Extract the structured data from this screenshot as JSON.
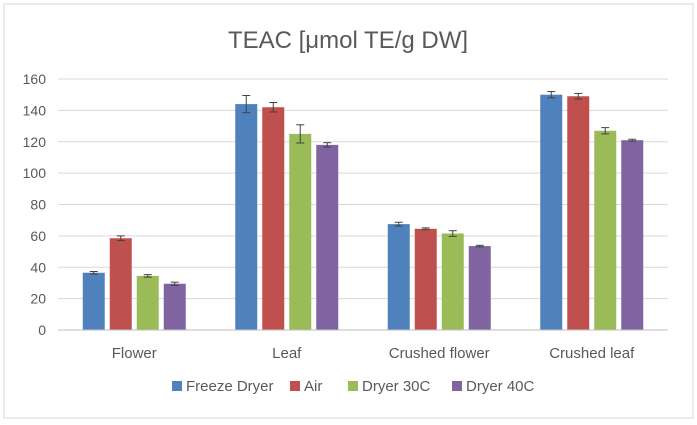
{
  "chart_data": {
    "type": "bar",
    "title": "TEAC [μmol TE/g DW]",
    "xlabel": "",
    "ylabel": "",
    "ylim": [
      0,
      160
    ],
    "yticks": [
      0,
      20,
      40,
      60,
      80,
      100,
      120,
      140,
      160
    ],
    "grid": true,
    "legend_position": "bottom",
    "categories": [
      "Flower",
      "Leaf",
      "Crushed flower",
      "Crushed leaf"
    ],
    "series": [
      {
        "name": "Freeze Dryer",
        "color": "#4F81BD",
        "values": [
          36.5,
          144,
          67.5,
          150
        ],
        "errors": [
          0.8,
          5.5,
          1.2,
          2.0
        ]
      },
      {
        "name": "Air",
        "color": "#C0504D",
        "values": [
          58.5,
          142,
          64.5,
          149
        ],
        "errors": [
          1.5,
          3.0,
          0.6,
          1.8
        ]
      },
      {
        "name": "Dryer 30C",
        "color": "#9BBB59",
        "values": [
          34.5,
          125,
          61.5,
          127
        ],
        "errors": [
          0.8,
          5.8,
          1.8,
          2.0
        ]
      },
      {
        "name": "Dryer 40C",
        "color": "#8064A2",
        "values": [
          29.5,
          118,
          53.5,
          121
        ],
        "errors": [
          1.0,
          1.4,
          0.5,
          0.6
        ]
      }
    ]
  }
}
